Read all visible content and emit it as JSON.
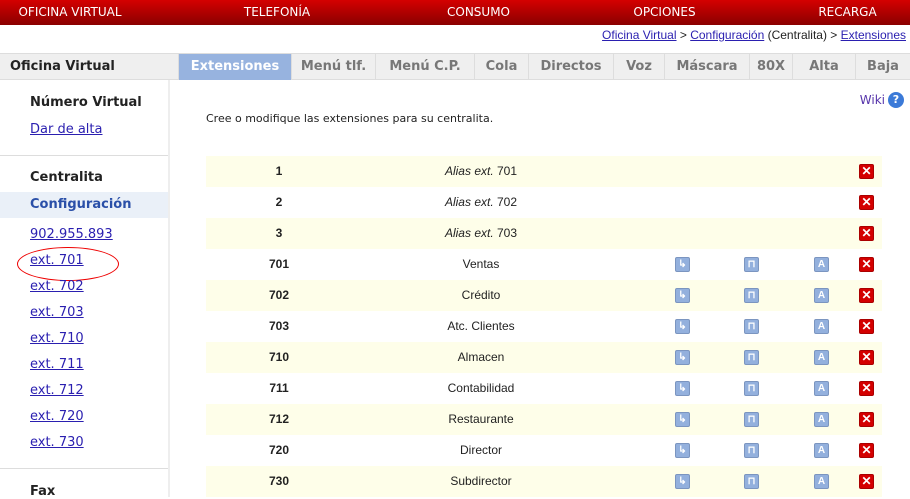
{
  "topnav": [
    "OFICINA VIRTUAL",
    "TELEFONÍA",
    "CONSUMO",
    "OPCIONES",
    "RECARGA"
  ],
  "breadcrumb": {
    "a": "Oficina Virtual",
    "sep1": " > ",
    "b": "Configuración",
    "mid": " (Centralita) > ",
    "c": "Extensiones"
  },
  "sidebar": {
    "title": "Oficina Virtual",
    "numero_virtual": "Número Virtual",
    "dar_de_alta": "Dar de alta",
    "centralita": "Centralita",
    "configuracion": "Configuración",
    "links": [
      "902.955.893",
      "ext. 701",
      "ext. 702",
      "ext. 703",
      "ext. 710",
      "ext. 711",
      "ext. 712",
      "ext. 720",
      "ext. 730"
    ],
    "fax": "Fax"
  },
  "tabs": [
    "Extensiones",
    "Menú tlf.",
    "Menú C.P.",
    "Cola",
    "Directos",
    "Voz",
    "Máscara",
    "80X",
    "Alta",
    "Baja"
  ],
  "wiki": "Wiki",
  "intro": "Cree o modifique las extensiones para su centralita.",
  "alias_prefix": "Alias ext.",
  "rows": [
    {
      "num": "1",
      "alias": "701",
      "isAlias": true
    },
    {
      "num": "2",
      "alias": "702",
      "isAlias": true
    },
    {
      "num": "3",
      "alias": "703",
      "isAlias": true
    },
    {
      "num": "701",
      "name": "Ventas"
    },
    {
      "num": "702",
      "name": "Crédito"
    },
    {
      "num": "703",
      "name": "Atc. Clientes"
    },
    {
      "num": "710",
      "name": "Almacen"
    },
    {
      "num": "711",
      "name": "Contabilidad"
    },
    {
      "num": "712",
      "name": "Restaurante"
    },
    {
      "num": "720",
      "name": "Director"
    },
    {
      "num": "730",
      "name": "Subdirector"
    }
  ]
}
